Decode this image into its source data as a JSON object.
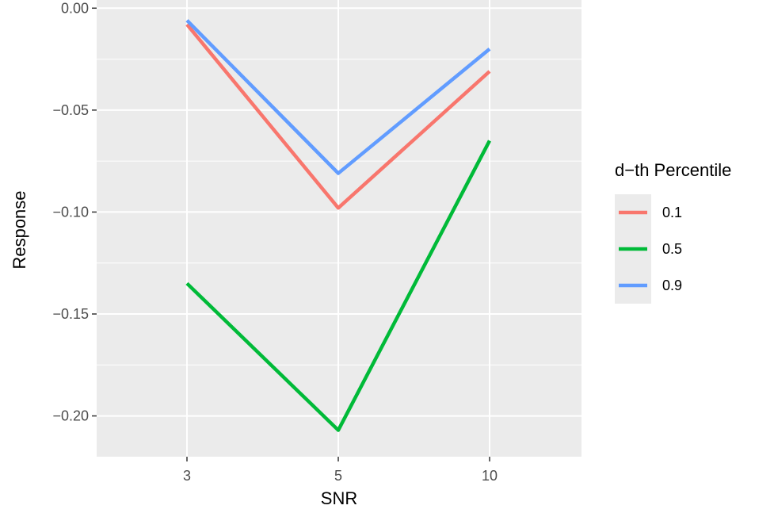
{
  "chart_data": {
    "type": "line",
    "x": [
      "3",
      "5",
      "10"
    ],
    "xlabel": "SNR",
    "ylabel": "Response",
    "ylim": [
      -0.22,
      0.004
    ],
    "yticks": [
      "0.00",
      "−0.05",
      "−0.10",
      "−0.15",
      "−0.20"
    ],
    "ytick_values": [
      0,
      -0.05,
      -0.1,
      -0.15,
      -0.2
    ],
    "grid": true,
    "legend": {
      "title": "d−th Percentile",
      "placement": "right"
    },
    "series": [
      {
        "name": "0.1",
        "color": "#F8766D",
        "values": [
          -0.008,
          -0.098,
          -0.031
        ]
      },
      {
        "name": "0.5",
        "color": "#00BA38",
        "values": [
          -0.135,
          -0.207,
          -0.065
        ]
      },
      {
        "name": "0.9",
        "color": "#619CFF",
        "values": [
          -0.006,
          -0.081,
          -0.02
        ]
      }
    ]
  }
}
